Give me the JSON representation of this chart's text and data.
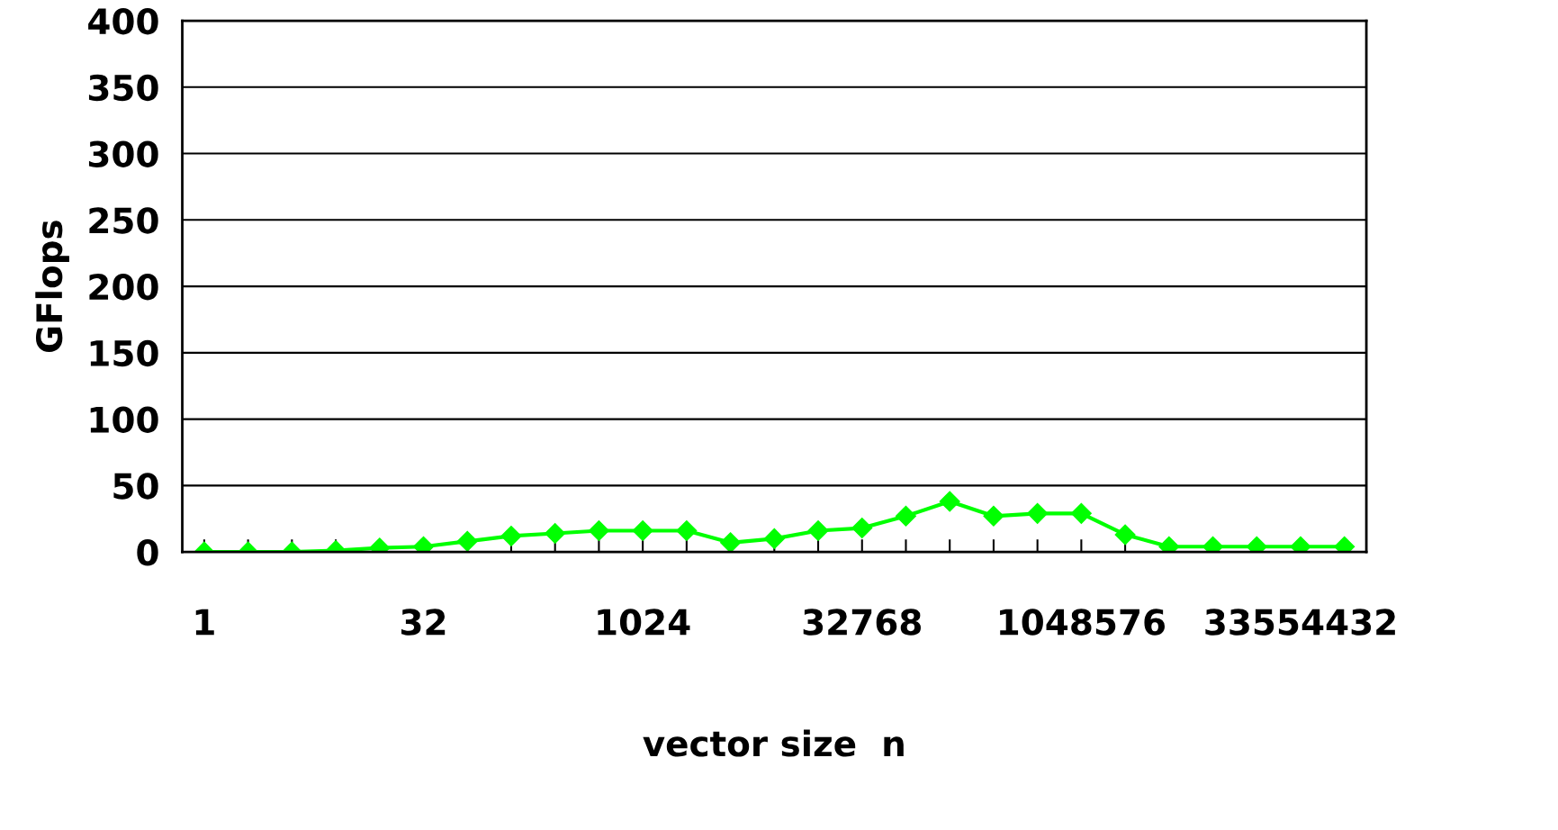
{
  "chart_data": {
    "type": "line",
    "xlabel": "vector size  n",
    "ylabel": "GFlops",
    "categories": [
      "1",
      null,
      null,
      null,
      null,
      "32",
      null,
      null,
      null,
      null,
      "1024",
      null,
      null,
      null,
      null,
      "32768",
      null,
      null,
      null,
      null,
      "1048576",
      null,
      null,
      null,
      null,
      "33554432",
      null
    ],
    "series": [
      {
        "color": "#00ff00",
        "values": [
          0,
          0,
          0,
          1,
          3,
          4,
          8,
          12,
          14,
          16,
          16,
          16,
          7,
          10,
          16,
          18,
          27,
          38,
          27,
          29,
          29,
          13,
          4,
          4,
          4,
          4,
          4
        ]
      }
    ],
    "ylim": [
      0,
      400
    ],
    "yticks": [
      0,
      50,
      100,
      150,
      200,
      250,
      300,
      350,
      400
    ],
    "grid": "y",
    "marker": "diamond",
    "line_style": "solid",
    "legend": false
  }
}
